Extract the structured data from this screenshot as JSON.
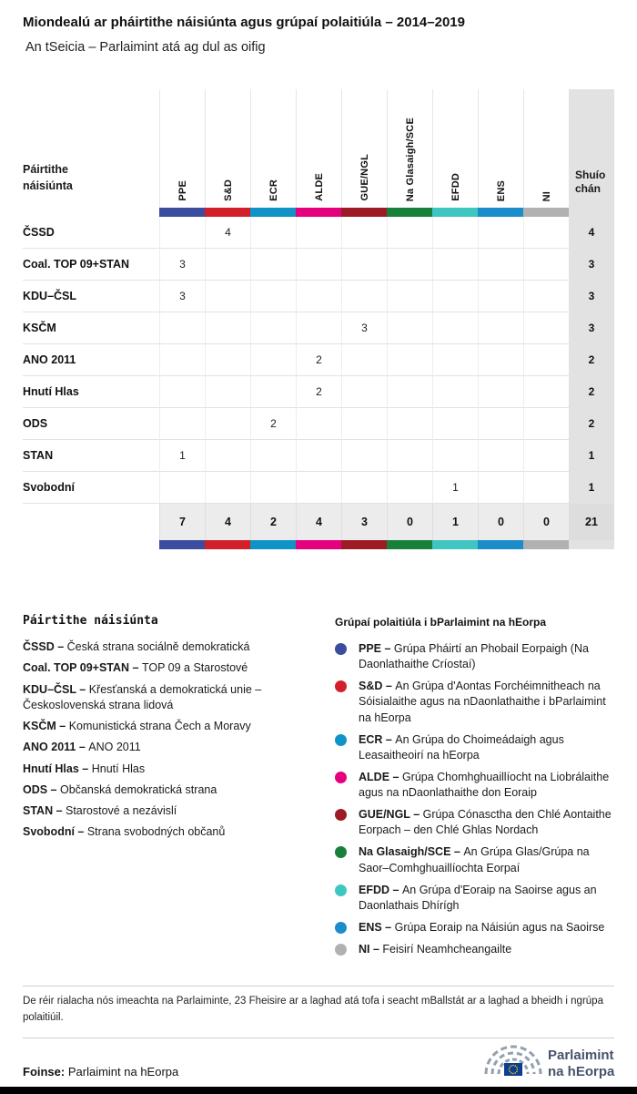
{
  "header": {
    "title": "Miondealú ar pháirtithe náisiúnta agus grúpaí polaitiúla – 2014–2019",
    "subtitle": "An tSeicia – Parlaimint atá ag dul as oifig"
  },
  "chart_data": {
    "type": "table",
    "title": "Miondealú ar pháirtithe náisiúnta agus grúpaí polaitiúla – 2014–2019",
    "subtitle": "An tSeicia – Parlaimint atá ag dul as oifig",
    "row_header_label": "Páirtithe\nnáisiúnta",
    "total_label": "Shuíochán",
    "groups": [
      {
        "id": "PPE",
        "color": "#3a4d9f"
      },
      {
        "id": "S&D",
        "color": "#d2202a"
      },
      {
        "id": "ECR",
        "color": "#1093c6"
      },
      {
        "id": "ALDE",
        "color": "#e5007d"
      },
      {
        "id": "GUE/NGL",
        "color": "#9d1b24"
      },
      {
        "id": "Na Glasaigh/SCE",
        "color": "#17803b"
      },
      {
        "id": "EFDD",
        "color": "#3fc6c0"
      },
      {
        "id": "ENS",
        "color": "#1d8ccb"
      },
      {
        "id": "NI",
        "color": "#b1b1b1"
      }
    ],
    "rows": [
      {
        "party": "ČSSD",
        "values": [
          null,
          4,
          null,
          null,
          null,
          null,
          null,
          null,
          null
        ],
        "total": 4
      },
      {
        "party": "Coal. TOP 09+STAN",
        "values": [
          3,
          null,
          null,
          null,
          null,
          null,
          null,
          null,
          null
        ],
        "total": 3
      },
      {
        "party": "KDU–ČSL",
        "values": [
          3,
          null,
          null,
          null,
          null,
          null,
          null,
          null,
          null
        ],
        "total": 3
      },
      {
        "party": "KSČM",
        "values": [
          null,
          null,
          null,
          null,
          3,
          null,
          null,
          null,
          null
        ],
        "total": 3
      },
      {
        "party": "ANO 2011",
        "values": [
          null,
          null,
          null,
          2,
          null,
          null,
          null,
          null,
          null
        ],
        "total": 2
      },
      {
        "party": "Hnutí Hlas",
        "values": [
          null,
          null,
          null,
          2,
          null,
          null,
          null,
          null,
          null
        ],
        "total": 2
      },
      {
        "party": "ODS",
        "values": [
          null,
          null,
          2,
          null,
          null,
          null,
          null,
          null,
          null
        ],
        "total": 2
      },
      {
        "party": "STAN",
        "values": [
          1,
          null,
          null,
          null,
          null,
          null,
          null,
          null,
          null
        ],
        "total": 1
      },
      {
        "party": "Svobodní",
        "values": [
          null,
          null,
          null,
          null,
          null,
          null,
          1,
          null,
          null
        ],
        "total": 1
      }
    ],
    "totals": {
      "values": [
        7,
        4,
        2,
        4,
        3,
        0,
        1,
        0,
        0
      ],
      "total": 21
    }
  },
  "legend_left": {
    "title": "Páirtithe náisiúnta",
    "items": [
      {
        "term": "ČSSD –",
        "definition": "Česká strana sociálně demokratická"
      },
      {
        "term": "Coal. TOP 09+STAN –",
        "definition": "TOP 09 a Starostové"
      },
      {
        "term": "KDU–ČSL –",
        "definition": "Křesťanská a demokratická unie – Československá strana lidová"
      },
      {
        "term": "KSČM –",
        "definition": "Komunistická strana Čech a Moravy"
      },
      {
        "term": "ANO 2011 –",
        "definition": "ANO 2011"
      },
      {
        "term": "Hnutí Hlas –",
        "definition": "Hnutí Hlas"
      },
      {
        "term": "ODS –",
        "definition": "Občanská demokratická strana"
      },
      {
        "term": "STAN –",
        "definition": "Starostové a nezávislí"
      },
      {
        "term": "Svobodní –",
        "definition": "Strana svobodných občanů"
      }
    ]
  },
  "legend_right": {
    "title": "Grúpaí polaitiúla i bParlaimint na hEorpa",
    "items": [
      {
        "term": "PPE –",
        "color": "#3a4d9f",
        "definition": "Grúpa Pháirtí an Phobail Eorpaigh (Na Daonlathaithe Críostaí)"
      },
      {
        "term": "S&D –",
        "color": "#d2202a",
        "definition": "An Grúpa d'Aontas Forchéimnitheach na Sóisialaithe agus na nDaonlathaithe i bParlaimint na hEorpa"
      },
      {
        "term": "ECR –",
        "color": "#1093c6",
        "definition": "An Grúpa do Choimeádaigh agus Leasaitheoirí na hEorpa"
      },
      {
        "term": "ALDE –",
        "color": "#e5007d",
        "definition": "Grúpa Chomhghuaillíocht na Liobrálaithe agus na nDaonlathaithe don Eoraip"
      },
      {
        "term": "GUE/NGL –",
        "color": "#9d1b24",
        "definition": "Grúpa Cónasctha den Chlé Aontaithe Eorpach – den Chlé Ghlas Nordach"
      },
      {
        "term": "Na Glasaigh/SCE –",
        "color": "#17803b",
        "definition": "An Grúpa Glas/Grúpa na Saor–Comhghuaillíochta Eorpaí"
      },
      {
        "term": "EFDD –",
        "color": "#3fc6c0",
        "definition": "An Grúpa d'Eoraip na Saoirse agus an Daonlathais Dhírígh"
      },
      {
        "term": "ENS –",
        "color": "#1d8ccb",
        "definition": "Grúpa Eoraip na Náisiún agus na Saoirse"
      },
      {
        "term": "NI –",
        "color": "#b1b1b1",
        "definition": "Feisirí Neamhcheangailte"
      }
    ]
  },
  "footnote": "De réir rialacha nós imeachta na Parlaiminte, 23 Fheisire ar a laghad atá tofa i seacht mBallstát ar a laghad a bheidh i ngrúpa polaitiúil.",
  "source": {
    "label": "Foinse:",
    "text": " Parlaimint na hEorpa"
  },
  "logo": {
    "line1": "Parlaimint",
    "line2": "na hEorpa"
  }
}
